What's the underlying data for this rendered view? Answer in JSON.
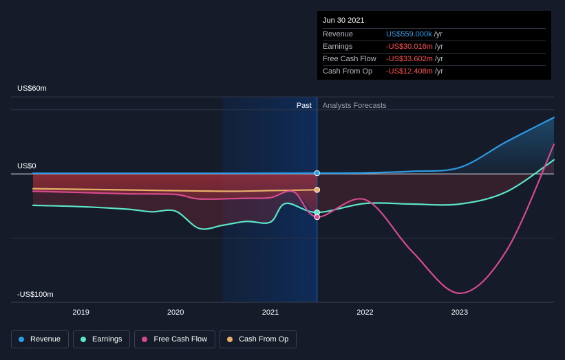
{
  "chart_data": {
    "type": "line",
    "y_unit": "US$m",
    "ylim": [
      -100,
      60
    ],
    "y_tick_labels": [
      {
        "value": 60,
        "label": "US$60m"
      },
      {
        "value": 0,
        "label": "US$0"
      },
      {
        "value": -100,
        "label": "-US$100m"
      }
    ],
    "x_tick_labels": [
      {
        "date": "2019-01-01",
        "label": "2019"
      },
      {
        "date": "2020-01-01",
        "label": "2020"
      },
      {
        "date": "2021-01-01",
        "label": "2021"
      },
      {
        "date": "2022-01-01",
        "label": "2022"
      },
      {
        "date": "2023-01-01",
        "label": "2023"
      }
    ],
    "x_range": [
      "2018-06-30",
      "2023-12-31"
    ],
    "split_date": "2021-06-30",
    "highlight_start": "2020-06-30",
    "past_label": "Past",
    "forecast_label": "Analysts Forecasts",
    "series": [
      {
        "name": "Revenue",
        "color": "#2d9be5",
        "points": [
          [
            "2018-06-30",
            0.5
          ],
          [
            "2019-06-30",
            0.5
          ],
          [
            "2020-06-30",
            0.5
          ],
          [
            "2021-06-30",
            0.6
          ],
          [
            "2022-01-01",
            0.8
          ],
          [
            "2022-06-30",
            2
          ],
          [
            "2023-01-01",
            5
          ],
          [
            "2023-06-30",
            25
          ],
          [
            "2023-12-31",
            44
          ]
        ]
      },
      {
        "name": "Earnings",
        "color": "#5ce6c8",
        "points": [
          [
            "2018-06-30",
            -24.5
          ],
          [
            "2019-01-01",
            -25.5
          ],
          [
            "2019-06-30",
            -27.5
          ],
          [
            "2019-10-01",
            -29.5
          ],
          [
            "2020-01-01",
            -29
          ],
          [
            "2020-04-01",
            -42.5
          ],
          [
            "2020-07-01",
            -40
          ],
          [
            "2020-10-01",
            -37
          ],
          [
            "2021-01-01",
            -37.5
          ],
          [
            "2021-03-01",
            -23
          ],
          [
            "2021-06-30",
            -30
          ],
          [
            "2022-01-01",
            -23
          ],
          [
            "2022-06-30",
            -23.5
          ],
          [
            "2023-01-01",
            -23.5
          ],
          [
            "2023-06-30",
            -14
          ],
          [
            "2023-12-31",
            11
          ]
        ]
      },
      {
        "name": "Free Cash Flow",
        "color": "#d44b8f",
        "points": [
          [
            "2018-06-30",
            -13.5
          ],
          [
            "2019-01-01",
            -14.5
          ],
          [
            "2019-06-30",
            -15.5
          ],
          [
            "2020-01-01",
            -16
          ],
          [
            "2020-04-01",
            -19.5
          ],
          [
            "2020-10-01",
            -19
          ],
          [
            "2021-01-01",
            -18.5
          ],
          [
            "2021-04-01",
            -14
          ],
          [
            "2021-06-30",
            -33.6
          ],
          [
            "2022-01-01",
            -20
          ],
          [
            "2022-06-30",
            -60
          ],
          [
            "2023-01-01",
            -93
          ],
          [
            "2023-06-30",
            -60
          ],
          [
            "2023-12-31",
            23
          ]
        ]
      },
      {
        "name": "Cash From Op",
        "color": "#e8b068",
        "points": [
          [
            "2018-06-30",
            -11.5
          ],
          [
            "2019-06-30",
            -12.5
          ],
          [
            "2020-06-30",
            -13.5
          ],
          [
            "2021-01-01",
            -13
          ],
          [
            "2021-06-30",
            -12.4
          ]
        ]
      }
    ],
    "tooltip": {
      "date": "Jun 30 2021",
      "rows": [
        {
          "name": "Revenue",
          "value": "US$559.000k",
          "unit": "/yr",
          "color": "#2d9be5"
        },
        {
          "name": "Earnings",
          "value": "-US$30.016m",
          "unit": "/yr",
          "color": "#ff4d4d"
        },
        {
          "name": "Free Cash Flow",
          "value": "-US$33.602m",
          "unit": "/yr",
          "color": "#ff4d4d"
        },
        {
          "name": "Cash From Op",
          "value": "-US$12.408m",
          "unit": "/yr",
          "color": "#ff4d4d"
        }
      ]
    }
  }
}
